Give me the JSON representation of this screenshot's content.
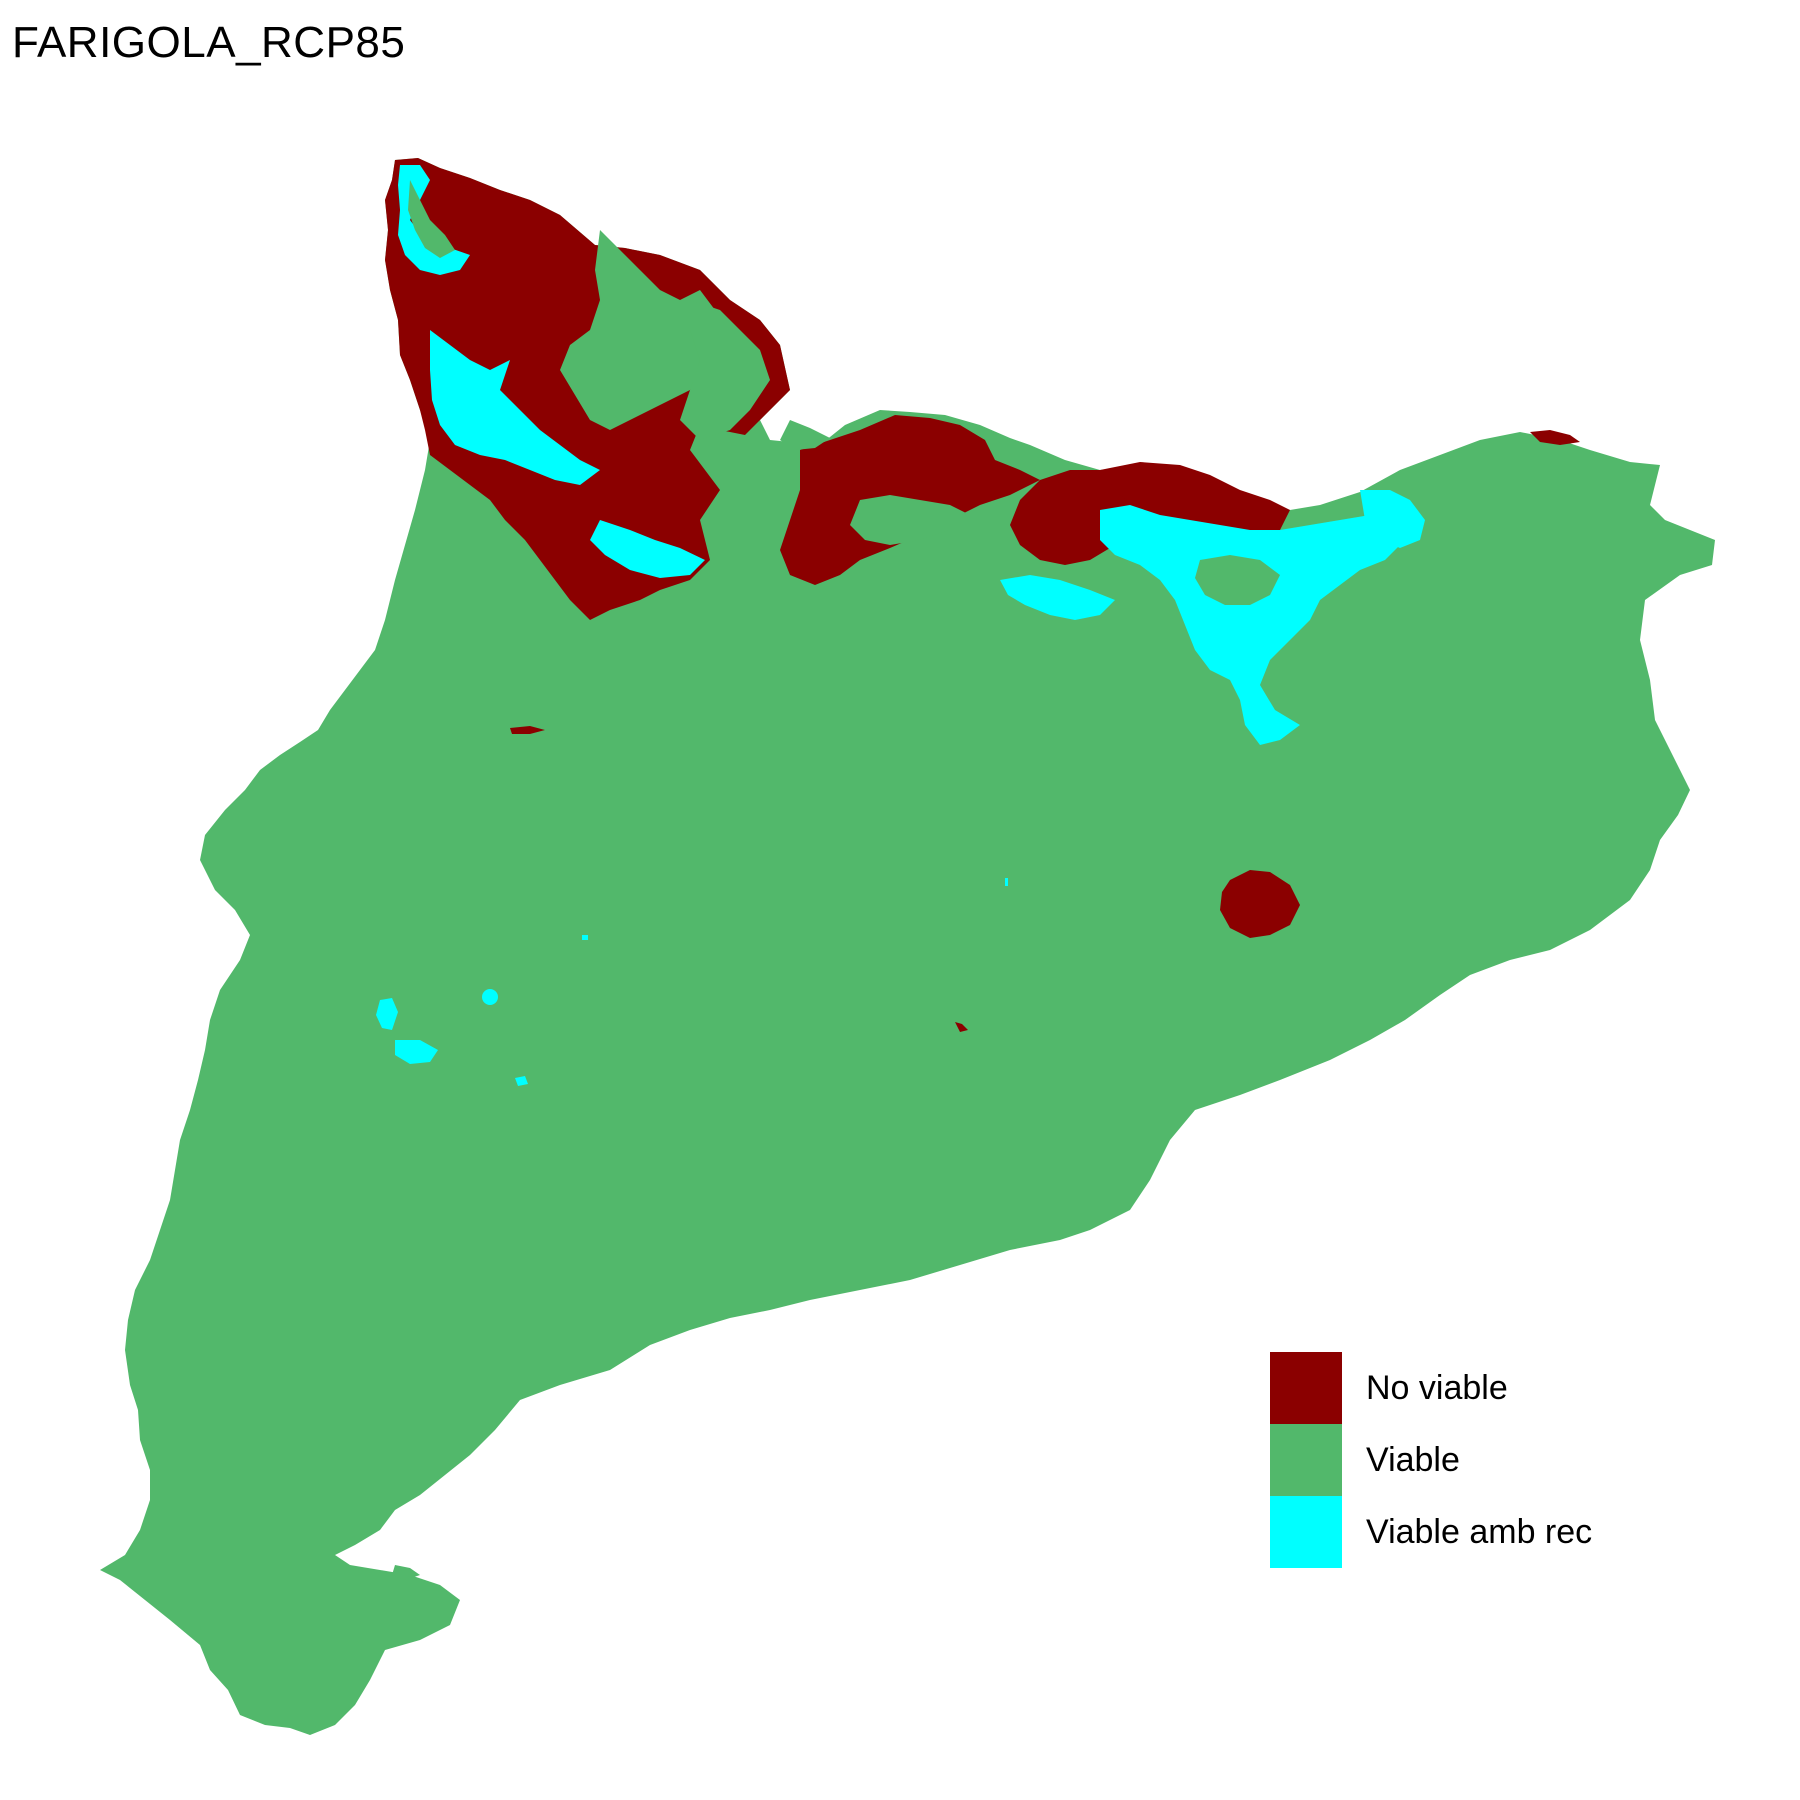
{
  "title": "FARIGOLA_RCP85",
  "colors": {
    "no_viable": "#8b0000",
    "viable": "#52b86b",
    "viable_amb_rec": "#00ffff"
  },
  "legend": {
    "items": [
      {
        "label": "No viable",
        "color": "#8b0000"
      },
      {
        "label": "Viable",
        "color": "#52b86b"
      },
      {
        "label": "Viable amb rec",
        "color": "#00ffff"
      }
    ]
  }
}
